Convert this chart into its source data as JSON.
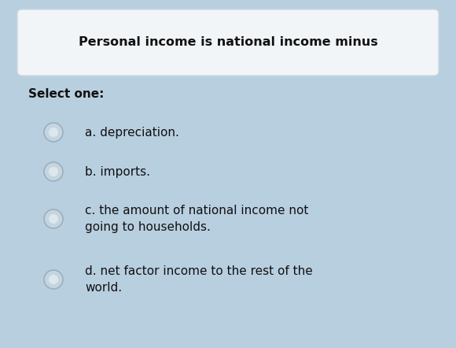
{
  "bg_color": "#b8cfe0",
  "title_box_color": "#f2f5f8",
  "title_box_edge": "#d0d8e0",
  "title_text": "Personal income is national income minus",
  "title_fontsize": 11.5,
  "title_fontweight": "bold",
  "select_text": "Select one:",
  "select_fontsize": 11,
  "select_fontweight": "bold",
  "options": [
    "a. depreciation.",
    "b. imports.",
    "c. the amount of national income not\ngoing to households.",
    "d. net factor income to the rest of the\nworld."
  ],
  "option_fontsize": 11,
  "radio_color_face": "#c5d5e0",
  "radio_color_edge": "#9ab0be",
  "radio_inner_color": "#dde8ee",
  "fig_width": 5.8,
  "fig_height": 4.42,
  "dpi": 100
}
